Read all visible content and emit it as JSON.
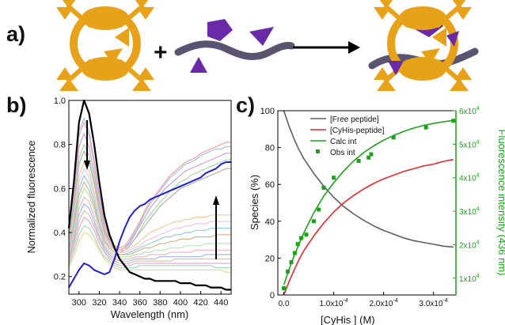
{
  "panels": {
    "a": {
      "label": "a)",
      "plus": "+"
    },
    "b": {
      "label": "b)"
    },
    "c": {
      "label": "c)"
    }
  },
  "colors": {
    "host": "#e8a21a",
    "peptide_backbone": "#5b5470",
    "peptide_groups": "#6a2aa8",
    "c_free": "#5e5e5e",
    "c_bound": "#e8262c",
    "c_calc": "#1aa31a",
    "c_right_axis": "#1aa31a"
  },
  "chart_data": [
    {
      "type": "line",
      "panel": "b",
      "xlabel": "Wavelength (nm)",
      "ylabel": "Normalized fluorescence",
      "xlim": [
        290,
        450
      ],
      "ylim": [
        0.12,
        1.0
      ],
      "xticks": [
        300,
        320,
        340,
        360,
        380,
        400,
        420,
        440
      ],
      "yticks": [
        0.2,
        0.4,
        0.6,
        0.8,
        1.0
      ],
      "ytick_labels": [
        "0.2",
        "0.4",
        "0.6",
        "0.8",
        "1.0"
      ],
      "grid": false,
      "x": [
        290,
        295,
        300,
        305,
        310,
        315,
        320,
        325,
        330,
        335,
        340,
        345,
        350,
        355,
        360,
        365,
        370,
        375,
        380,
        385,
        390,
        395,
        400,
        405,
        410,
        415,
        420,
        425,
        430,
        435,
        440,
        445,
        450
      ],
      "series": [
        {
          "color": "#000000",
          "width": 2.2,
          "values": [
            0.42,
            0.63,
            0.9,
            1.0,
            0.94,
            0.8,
            0.63,
            0.48,
            0.39,
            0.33,
            0.28,
            0.25,
            0.22,
            0.21,
            0.2,
            0.19,
            0.19,
            0.18,
            0.18,
            0.18,
            0.18,
            0.18,
            0.17,
            0.17,
            0.17,
            0.16,
            0.16,
            0.16,
            0.15,
            0.15,
            0.15,
            0.14,
            0.14
          ]
        },
        {
          "color": "#2020d0",
          "width": 2.0,
          "values": [
            0.15,
            0.19,
            0.23,
            0.26,
            0.25,
            0.23,
            0.22,
            0.21,
            0.22,
            0.28,
            0.36,
            0.42,
            0.47,
            0.5,
            0.52,
            0.53,
            0.55,
            0.56,
            0.57,
            0.58,
            0.59,
            0.6,
            0.61,
            0.62,
            0.63,
            0.64,
            0.65,
            0.67,
            0.68,
            0.69,
            0.71,
            0.72,
            0.72
          ]
        },
        {
          "color": "#9ec3e6",
          "width": 1.2,
          "values": [
            0.4,
            0.62,
            0.86,
            0.92,
            0.86,
            0.73,
            0.58,
            0.45,
            0.37,
            0.34,
            0.32,
            0.33,
            0.36,
            0.4,
            0.44,
            0.49,
            0.53,
            0.56,
            0.59,
            0.62,
            0.65,
            0.67,
            0.69,
            0.71,
            0.72,
            0.73,
            0.75,
            0.76,
            0.77,
            0.78,
            0.78,
            0.79,
            0.79
          ]
        },
        {
          "color": "#f2a0a0",
          "width": 1.2,
          "values": [
            0.39,
            0.6,
            0.84,
            0.9,
            0.84,
            0.71,
            0.56,
            0.44,
            0.37,
            0.34,
            0.33,
            0.34,
            0.37,
            0.41,
            0.45,
            0.5,
            0.54,
            0.57,
            0.6,
            0.63,
            0.66,
            0.68,
            0.7,
            0.72,
            0.73,
            0.74,
            0.76,
            0.77,
            0.78,
            0.79,
            0.8,
            0.81,
            0.81
          ]
        },
        {
          "color": "#c9a0dc",
          "width": 1.2,
          "values": [
            0.38,
            0.57,
            0.79,
            0.85,
            0.79,
            0.67,
            0.53,
            0.42,
            0.36,
            0.33,
            0.32,
            0.33,
            0.35,
            0.39,
            0.43,
            0.47,
            0.51,
            0.54,
            0.57,
            0.6,
            0.62,
            0.64,
            0.66,
            0.68,
            0.69,
            0.7,
            0.71,
            0.72,
            0.73,
            0.74,
            0.75,
            0.76,
            0.76
          ]
        },
        {
          "color": "#a7d9a0",
          "width": 1.2,
          "values": [
            0.36,
            0.54,
            0.74,
            0.8,
            0.75,
            0.64,
            0.51,
            0.41,
            0.35,
            0.32,
            0.31,
            0.32,
            0.34,
            0.37,
            0.41,
            0.45,
            0.48,
            0.51,
            0.54,
            0.56,
            0.59,
            0.61,
            0.63,
            0.64,
            0.66,
            0.67,
            0.68,
            0.69,
            0.7,
            0.71,
            0.72,
            0.73,
            0.73
          ]
        },
        {
          "color": "#b0b0b0",
          "width": 1.2,
          "values": [
            0.35,
            0.52,
            0.71,
            0.77,
            0.72,
            0.62,
            0.5,
            0.4,
            0.35,
            0.32,
            0.31,
            0.32,
            0.34,
            0.37,
            0.4,
            0.43,
            0.46,
            0.49,
            0.52,
            0.54,
            0.56,
            0.58,
            0.6,
            0.61,
            0.62,
            0.63,
            0.64,
            0.65,
            0.66,
            0.67,
            0.68,
            0.69,
            0.69
          ]
        },
        {
          "color": "#f3c99a",
          "width": 1.2,
          "values": [
            0.34,
            0.49,
            0.66,
            0.72,
            0.68,
            0.58,
            0.47,
            0.39,
            0.35,
            0.33,
            0.32,
            0.32,
            0.33,
            0.34,
            0.36,
            0.38,
            0.4,
            0.41,
            0.42,
            0.43,
            0.44,
            0.45,
            0.45,
            0.46,
            0.46,
            0.47,
            0.47,
            0.47,
            0.48,
            0.48,
            0.48,
            0.48,
            0.48
          ]
        },
        {
          "color": "#e8c8e8",
          "width": 1.2,
          "values": [
            0.33,
            0.47,
            0.63,
            0.69,
            0.65,
            0.56,
            0.46,
            0.38,
            0.34,
            0.32,
            0.31,
            0.31,
            0.32,
            0.33,
            0.34,
            0.36,
            0.37,
            0.38,
            0.39,
            0.4,
            0.41,
            0.42,
            0.42,
            0.43,
            0.43,
            0.44,
            0.44,
            0.44,
            0.45,
            0.45,
            0.45,
            0.45,
            0.45
          ]
        },
        {
          "color": "#8fd0d0",
          "width": 1.2,
          "values": [
            0.32,
            0.45,
            0.6,
            0.66,
            0.62,
            0.54,
            0.44,
            0.37,
            0.33,
            0.31,
            0.3,
            0.3,
            0.31,
            0.32,
            0.33,
            0.34,
            0.35,
            0.36,
            0.37,
            0.38,
            0.38,
            0.39,
            0.39,
            0.4,
            0.4,
            0.41,
            0.41,
            0.41,
            0.42,
            0.42,
            0.42,
            0.42,
            0.42
          ]
        },
        {
          "color": "#d2b48c",
          "width": 1.2,
          "values": [
            0.31,
            0.43,
            0.57,
            0.63,
            0.59,
            0.52,
            0.43,
            0.36,
            0.33,
            0.31,
            0.3,
            0.3,
            0.3,
            0.31,
            0.32,
            0.33,
            0.33,
            0.34,
            0.35,
            0.35,
            0.36,
            0.36,
            0.37,
            0.37,
            0.37,
            0.38,
            0.38,
            0.38,
            0.38,
            0.39,
            0.39,
            0.39,
            0.39
          ]
        },
        {
          "color": "#b5e6b5",
          "width": 1.2,
          "values": [
            0.3,
            0.41,
            0.54,
            0.6,
            0.57,
            0.5,
            0.42,
            0.35,
            0.32,
            0.3,
            0.29,
            0.29,
            0.29,
            0.3,
            0.3,
            0.31,
            0.31,
            0.32,
            0.32,
            0.32,
            0.33,
            0.33,
            0.33,
            0.34,
            0.34,
            0.34,
            0.34,
            0.35,
            0.35,
            0.35,
            0.35,
            0.35,
            0.35
          ]
        },
        {
          "color": "#f5b2c8",
          "width": 1.2,
          "values": [
            0.29,
            0.39,
            0.51,
            0.56,
            0.54,
            0.47,
            0.4,
            0.34,
            0.31,
            0.29,
            0.28,
            0.28,
            0.28,
            0.29,
            0.29,
            0.29,
            0.3,
            0.3,
            0.3,
            0.3,
            0.31,
            0.31,
            0.31,
            0.31,
            0.31,
            0.32,
            0.32,
            0.32,
            0.32,
            0.32,
            0.32,
            0.32,
            0.32
          ]
        },
        {
          "color": "#aab6e8",
          "width": 1.2,
          "values": [
            0.28,
            0.37,
            0.48,
            0.53,
            0.51,
            0.45,
            0.38,
            0.33,
            0.3,
            0.28,
            0.27,
            0.27,
            0.27,
            0.28,
            0.28,
            0.28,
            0.28,
            0.28,
            0.29,
            0.29,
            0.29,
            0.29,
            0.29,
            0.29,
            0.29,
            0.29,
            0.29,
            0.3,
            0.3,
            0.3,
            0.3,
            0.3,
            0.3
          ]
        },
        {
          "color": "#c8c8a0",
          "width": 1.2,
          "values": [
            0.27,
            0.35,
            0.45,
            0.5,
            0.48,
            0.43,
            0.37,
            0.32,
            0.29,
            0.27,
            0.26,
            0.26,
            0.26,
            0.27,
            0.27,
            0.27,
            0.27,
            0.27,
            0.27,
            0.27,
            0.27,
            0.28,
            0.28,
            0.28,
            0.28,
            0.28,
            0.28,
            0.28,
            0.28,
            0.28,
            0.28,
            0.28,
            0.28
          ]
        },
        {
          "color": "#e6a9d8",
          "width": 1.2,
          "values": [
            0.26,
            0.33,
            0.42,
            0.47,
            0.45,
            0.41,
            0.35,
            0.31,
            0.28,
            0.26,
            0.25,
            0.25,
            0.25,
            0.26,
            0.26,
            0.26,
            0.26,
            0.26,
            0.26,
            0.26,
            0.26,
            0.26,
            0.26,
            0.26,
            0.26,
            0.26,
            0.26,
            0.26,
            0.26,
            0.26,
            0.26,
            0.26,
            0.26
          ]
        },
        {
          "color": "#9fdcc0",
          "width": 1.2,
          "values": [
            0.25,
            0.31,
            0.39,
            0.43,
            0.42,
            0.38,
            0.33,
            0.29,
            0.27,
            0.25,
            0.24,
            0.24,
            0.24,
            0.24,
            0.25,
            0.25,
            0.25,
            0.25,
            0.25,
            0.25,
            0.25,
            0.25,
            0.25,
            0.25,
            0.25,
            0.25,
            0.25,
            0.25,
            0.25,
            0.24,
            0.24,
            0.24,
            0.24
          ]
        },
        {
          "color": "#f0d890",
          "width": 1.2,
          "values": [
            0.24,
            0.29,
            0.36,
            0.4,
            0.39,
            0.36,
            0.32,
            0.28,
            0.26,
            0.24,
            0.23,
            0.23,
            0.23,
            0.23,
            0.23,
            0.23,
            0.23,
            0.23,
            0.23,
            0.23,
            0.23,
            0.23,
            0.23,
            0.23,
            0.23,
            0.23,
            0.23,
            0.23,
            0.23,
            0.23,
            0.23,
            0.22,
            0.22
          ]
        }
      ]
    },
    {
      "type": "line",
      "panel": "c",
      "xlabel": "[CyHis ] (M)",
      "ylabel": "Species (%)",
      "y2label": "Fluorescence intensity (436 nm)",
      "xlim": [
        -1.2e-05,
        0.000345
      ],
      "ylim": [
        0,
        100
      ],
      "y2lim": [
        5000,
        60000
      ],
      "xticks": [
        0,
        0.0001,
        0.0002,
        0.0003
      ],
      "xtick_labels": [
        "0.0",
        "1.0x10",
        "2.0x10",
        "3.0x10"
      ],
      "xtick_exponents": [
        "",
        "-4",
        "-4",
        "-4"
      ],
      "yticks": [
        0,
        20,
        40,
        60,
        80,
        100
      ],
      "ytick_labels": [
        "0",
        "20",
        "40",
        "60",
        "80",
        "100"
      ],
      "y2ticks": [
        10000,
        20000,
        30000,
        40000,
        50000,
        60000
      ],
      "y2tick_labels": [
        "1x10",
        "2x10",
        "3x10",
        "4x10",
        "5x10",
        "6x10"
      ],
      "y2tick_exponent": "4",
      "grid": false,
      "legend_position": "top-center",
      "x": [
        0,
        1e-05,
        2e-05,
        3e-05,
        4e-05,
        6e-05,
        8e-05,
        0.0001,
        0.00012,
        0.00014,
        0.00016,
        0.00018,
        0.0002,
        0.00022,
        0.00024,
        0.00026,
        0.00028,
        0.0003,
        0.00032,
        0.00034
      ],
      "series": [
        {
          "name": "[Free peptide]",
          "color": "#5e5e5e",
          "axis": "left",
          "values": [
            100,
            92,
            85,
            79,
            74,
            66,
            59,
            53,
            48,
            44,
            40.5,
            37.5,
            35,
            33,
            31,
            29.5,
            28.5,
            27.5,
            26.5,
            26
          ]
        },
        {
          "name": "[CyHis-peptide]",
          "color": "#e8262c",
          "axis": "left",
          "values": [
            0,
            7,
            13,
            19,
            24,
            32,
            39,
            45,
            50,
            54,
            57.5,
            60.5,
            63,
            65,
            67,
            68.5,
            70,
            71,
            72.5,
            73.5
          ]
        },
        {
          "name": "Calc int",
          "color": "#1aa31a",
          "axis": "right",
          "values": [
            8000,
            12500,
            16500,
            20000,
            23500,
            29500,
            34500,
            38500,
            42000,
            45000,
            47500,
            49500,
            51200,
            52600,
            53800,
            54800,
            55600,
            56200,
            56700,
            57100
          ]
        },
        {
          "name": "Obs int",
          "color": "#1aa31a",
          "axis": "right",
          "marker": "square",
          "x": [
            0,
            8e-06,
            1.5e-05,
            2.2e-05,
            2.8e-05,
            3.5e-05,
            4.5e-05,
            6e-05,
            7e-05,
            8e-05,
            0.0001,
            0.00015,
            0.00017,
            0.000175,
            0.00022,
            0.000285,
            0.00034
          ],
          "values": [
            7000,
            12000,
            14800,
            17500,
            20200,
            22000,
            23000,
            27000,
            30500,
            37000,
            40000,
            45000,
            46000,
            47000,
            52000,
            55000,
            57000
          ]
        }
      ]
    }
  ]
}
